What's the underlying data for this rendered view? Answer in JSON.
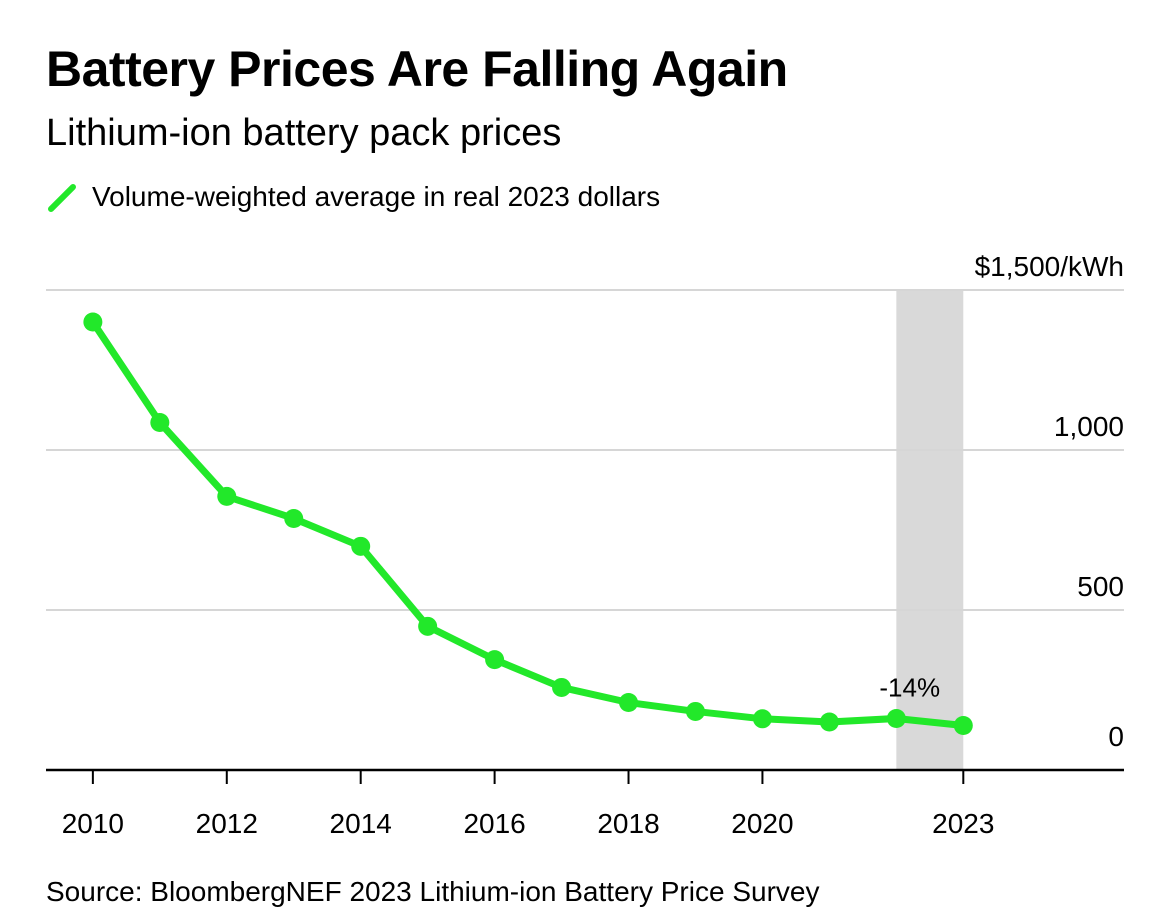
{
  "title": "Battery Prices Are Falling Again",
  "subtitle": "Lithium-ion battery pack prices",
  "legend": {
    "label": "Volume-weighted average in real 2023 dollars"
  },
  "source": "Source: BloombergNEF 2023 Lithium-ion Battery Price Survey",
  "colors": {
    "series": "#22e82a",
    "highlight": "#d9d9d9",
    "grid": "#d6d6d6",
    "axis": "#000000"
  },
  "chart_data": {
    "type": "line",
    "title": "Battery Prices Are Falling Again",
    "subtitle": "Lithium-ion battery pack prices",
    "x": [
      2010,
      2011,
      2012,
      2013,
      2014,
      2015,
      2016,
      2017,
      2018,
      2019,
      2020,
      2021,
      2022,
      2023
    ],
    "series": [
      {
        "name": "Volume-weighted average in real 2023 dollars",
        "values": [
          1400,
          1086,
          855,
          786,
          699,
          449,
          345,
          258,
          211,
          183,
          160,
          150,
          161,
          139
        ]
      }
    ],
    "xlim": [
      2009.3,
      2025.4
    ],
    "ylim": [
      0,
      1500
    ],
    "x_tick_labels": [
      "2010",
      "2012",
      "2014",
      "2016",
      "2018",
      "2020",
      "2023"
    ],
    "x_tick_values": [
      2010,
      2012,
      2014,
      2016,
      2018,
      2020,
      2023
    ],
    "x_tick_marks": [
      2010,
      2012,
      2014,
      2016,
      2018,
      2020,
      2023
    ],
    "y_tick_values": [
      1500,
      1000,
      500,
      0
    ],
    "y_tick_labels": [
      "$1,500/kWh",
      "1,000",
      "500",
      "0"
    ],
    "highlight_range": [
      2022,
      2023
    ],
    "annotation": {
      "text": "-14%",
      "x": 2022.2,
      "y": 230
    },
    "grid": true,
    "legend_position": "top-left"
  }
}
